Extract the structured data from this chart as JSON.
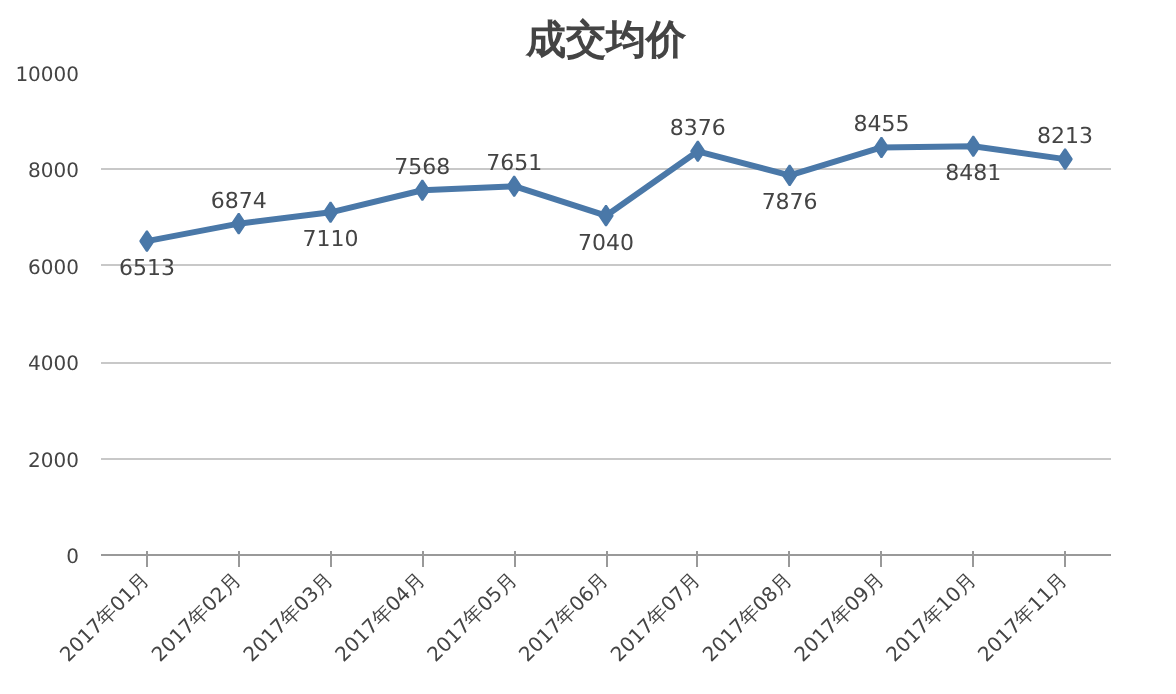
{
  "chart_data": {
    "type": "line",
    "title": "成交均价",
    "categories": [
      "2017年01月",
      "2017年02月",
      "2017年03月",
      "2017年04月",
      "2017年05月",
      "2017年06月",
      "2017年07月",
      "2017年08月",
      "2017年09月",
      "2017年10月",
      "2017年11月"
    ],
    "series": [
      {
        "color": "#4a78a8",
        "values": [
          6513,
          6874,
          7110,
          7568,
          7651,
          7040,
          8376,
          7876,
          8455,
          8481,
          8213
        ]
      }
    ],
    "ylim": [
      0,
      10000
    ],
    "yticks": [
      0,
      2000,
      4000,
      6000,
      8000,
      10000
    ],
    "grid": "y",
    "marker": "diamond",
    "line_style": "solid",
    "data_labels": true
  }
}
